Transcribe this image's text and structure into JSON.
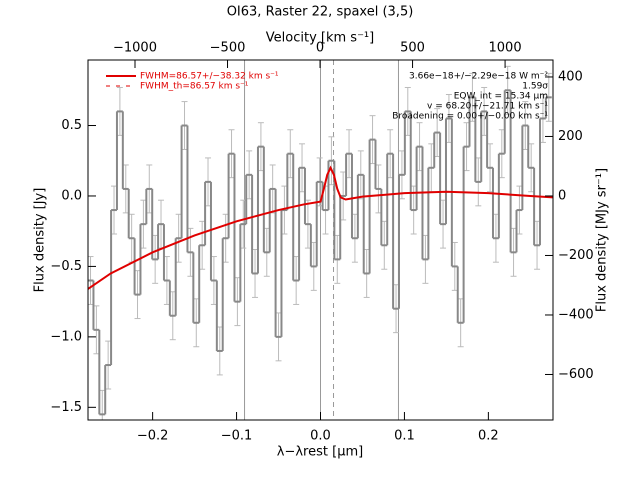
{
  "chart_data": {
    "type": "step",
    "title": "OI63, Raster 22, spaxel (3,5)",
    "xlabel": "λ−λrest [μm]",
    "ylabel": "Flux density [Jy]",
    "y2label": "Flux density [MJy sr⁻¹]",
    "x2label": "Velocity [km s⁻¹]",
    "xlim": [
      -0.277,
      0.277
    ],
    "ylim": [
      -1.59,
      0.965
    ],
    "y2lim": [
      -753,
      457
    ],
    "x2lim": [
      -1254,
      1259
    ],
    "xticks": [
      {
        "value": -0.2,
        "label": "−0.2"
      },
      {
        "value": -0.1,
        "label": "−0.1"
      },
      {
        "value": 0,
        "label": "0.0"
      },
      {
        "value": 0.1,
        "label": "0.1"
      },
      {
        "value": 0.2,
        "label": "0.2"
      }
    ],
    "yticks": [
      {
        "value": -1.5,
        "label": "−1.5"
      },
      {
        "value": -1,
        "label": "−1.0"
      },
      {
        "value": -0.5,
        "label": "−0.5"
      },
      {
        "value": 0,
        "label": "0.0"
      },
      {
        "value": 0.5,
        "label": "0.5"
      }
    ],
    "y2ticks": [
      {
        "value": -600,
        "label": "−600"
      },
      {
        "value": -400,
        "label": "−400"
      },
      {
        "value": -200,
        "label": "−200"
      },
      0,
      200,
      400
    ],
    "x2ticks": [
      {
        "value": -1000,
        "label": "−1000"
      },
      {
        "value": -500,
        "label": "−500"
      },
      0,
      500,
      1000
    ],
    "vlines": [
      {
        "x": -0.0905,
        "style": "solid"
      },
      {
        "x": 0,
        "style": "solid"
      },
      {
        "x": 0.0155,
        "style": "dashed"
      },
      {
        "x": 0.0929,
        "style": "solid"
      }
    ],
    "spectrum": {
      "color": "#888888",
      "bin_width": 0.007,
      "error": 0.17,
      "x": [
        -0.274,
        -0.267,
        -0.26,
        -0.253,
        -0.246,
        -0.239,
        -0.232,
        -0.225,
        -0.218,
        -0.211,
        -0.204,
        -0.197,
        -0.19,
        -0.183,
        -0.176,
        -0.169,
        -0.162,
        -0.155,
        -0.148,
        -0.141,
        -0.134,
        -0.127,
        -0.12,
        -0.113,
        -0.106,
        -0.099,
        -0.092,
        -0.085,
        -0.078,
        -0.071,
        -0.064,
        -0.057,
        -0.05,
        -0.043,
        -0.036,
        -0.029,
        -0.022,
        -0.015,
        -0.008,
        -0.001,
        0.006,
        0.013,
        0.02,
        0.027,
        0.034,
        0.041,
        0.048,
        0.055,
        0.062,
        0.069,
        0.076,
        0.083,
        0.09,
        0.097,
        0.104,
        0.111,
        0.118,
        0.125,
        0.132,
        0.139,
        0.146,
        0.153,
        0.16,
        0.167,
        0.174,
        0.181,
        0.188,
        0.195,
        0.202,
        0.209,
        0.216,
        0.223,
        0.23,
        0.237,
        0.244,
        0.251,
        0.258,
        0.265,
        0.272
      ],
      "values": [
        -0.6,
        -0.95,
        -1.55,
        -1.2,
        -0.1,
        0.6,
        0.05,
        -0.3,
        -0.7,
        -0.2,
        0.05,
        -0.45,
        -0.2,
        -0.6,
        -0.85,
        -0.3,
        0.5,
        -0.4,
        -0.9,
        -0.35,
        0.1,
        -0.6,
        -1.1,
        -0.3,
        0.3,
        -0.75,
        -0.2,
        0.15,
        -0.55,
        0.35,
        -0.4,
        0.05,
        -1.0,
        -0.1,
        0.3,
        -0.6,
        0.2,
        -0.2,
        -0.5,
        0.1,
        -0.1,
        0.25,
        -0.45,
        0.0,
        0.3,
        -0.3,
        0.15,
        -0.55,
        0.4,
        0.05,
        -0.35,
        0.3,
        -0.8,
        0.15,
        0.6,
        -0.1,
        0.35,
        -0.45,
        0.2,
        0.45,
        -0.2,
        0.55,
        -0.5,
        -0.9,
        0.35,
        0.7,
        0.1,
        0.6,
        0.2,
        -0.3,
        0.3,
        0.75,
        -0.4,
        -0.1,
        0.5,
        0.2,
        -0.35,
        0.55,
        0.7
      ]
    },
    "fit": {
      "color": "#e00000",
      "x": [
        -0.277,
        -0.25,
        -0.2,
        -0.15,
        -0.1,
        -0.05,
        -0.02,
        0.0,
        0.004,
        0.008,
        0.012,
        0.016,
        0.02,
        0.024,
        0.03,
        0.05,
        0.1,
        0.15,
        0.2,
        0.25,
        0.277
      ],
      "values": [
        -0.66,
        -0.55,
        -0.4,
        -0.28,
        -0.18,
        -0.1,
        -0.06,
        -0.04,
        0.05,
        0.15,
        0.2,
        0.15,
        0.05,
        -0.01,
        -0.025,
        -0.005,
        0.02,
        0.03,
        0.02,
        0.0,
        -0.01
      ]
    },
    "legend": [
      "FWHM=86.57+/−38.32 km s⁻¹",
      "FWHM_th=86.57 km s⁻¹"
    ],
    "annotations": [
      "3.66e−18+/−2.29e−18 W m⁻²",
      "1.59σ",
      "EQW_int = 15.34 μm",
      "v = 68.20+/−21.71 km s⁻¹",
      "Broadening = 0.00+/−0.00 km s⁻¹"
    ]
  }
}
